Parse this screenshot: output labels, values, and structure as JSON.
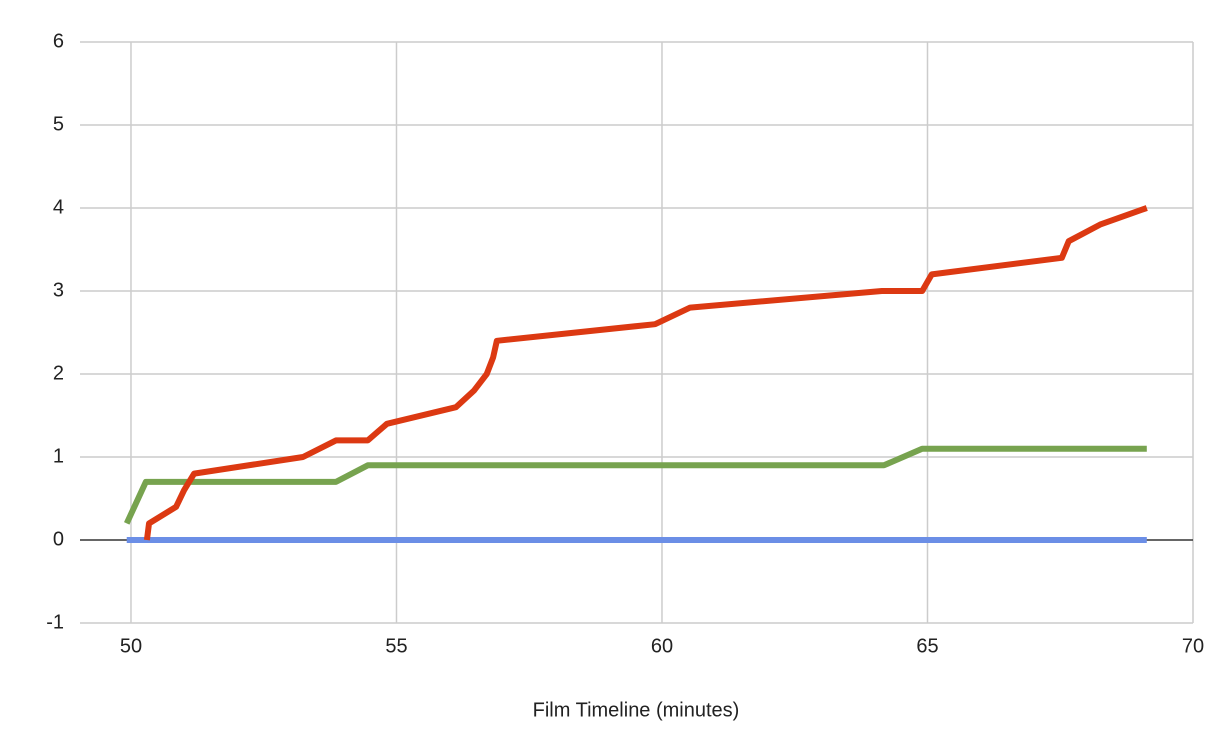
{
  "chart_data": {
    "type": "line",
    "x_label": "Film Timeline (minutes)",
    "series": [
      {
        "color": "#dc3912",
        "x": [
          50.3,
          50.34,
          50.85,
          51.0,
          51.19,
          53.24,
          53.86,
          54.46,
          54.82,
          56.12,
          56.46,
          56.7,
          56.82,
          56.89,
          59.87,
          60.53,
          64.14,
          64.9,
          65.08,
          67.53,
          67.66,
          68.25,
          69.13
        ],
        "values": [
          0,
          0.2,
          0.4,
          0.6,
          0.8,
          1.0,
          1.2,
          1.2,
          1.4,
          1.6,
          1.8,
          2.0,
          2.2,
          2.4,
          2.6,
          2.8,
          3.0,
          3.0,
          3.2,
          3.4,
          3.6,
          3.8,
          4.0
        ]
      },
      {
        "color": "#77a34f",
        "x": [
          49.92,
          50.28,
          53.86,
          54.46,
          64.18,
          64.9,
          69.13
        ],
        "values": [
          0.2,
          0.7,
          0.7,
          0.9,
          0.9,
          1.1,
          1.1
        ]
      },
      {
        "color": "#6b8ee6",
        "x": [
          49.92,
          69.13
        ],
        "values": [
          0,
          0
        ]
      }
    ],
    "xlim": [
      49.04,
      70
    ],
    "xticks": [
      50,
      55,
      60,
      65,
      70
    ],
    "ylim": [
      -1,
      6
    ],
    "yticks": [
      -1,
      0,
      1,
      2,
      3,
      4,
      5,
      6
    ],
    "grid": true
  }
}
